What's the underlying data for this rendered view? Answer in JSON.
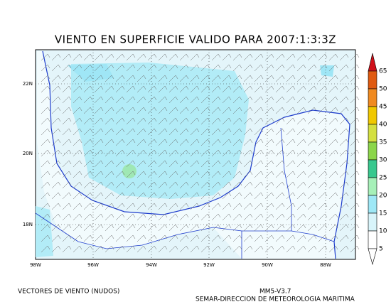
{
  "title": "VIENTO EN SUPERFICIE VALIDO PARA 2007:1:3:3Z",
  "lat_labels": [
    "22N",
    "20N",
    "18N"
  ],
  "lon_labels": [
    "98W",
    "96W",
    "94W",
    "92W",
    "90W",
    "88W"
  ],
  "colorbar": {
    "labels": [
      65,
      50,
      45,
      40,
      35,
      30,
      25,
      20,
      15,
      10,
      5
    ]
  },
  "footer": {
    "left": "VECTORES DE VIENTO (NUDOS)",
    "model": "MM5-V3.7",
    "agency": "SEMAR-DIRECCION DE METEOROLOGIA MARITIMA"
  }
}
